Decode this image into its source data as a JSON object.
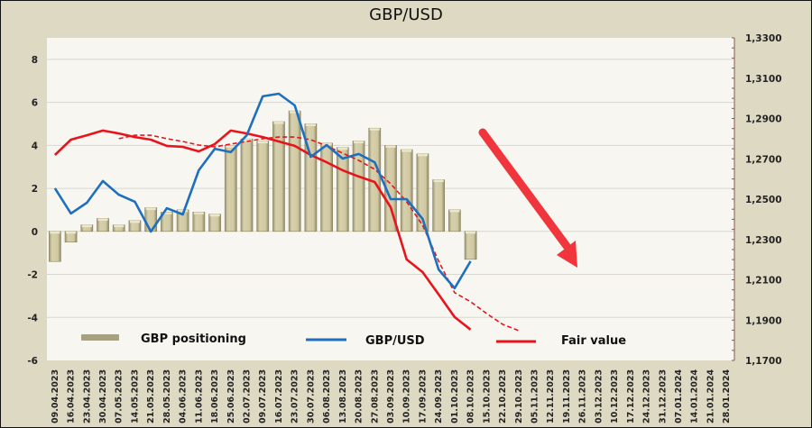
{
  "chart_data": {
    "type": "bar+line",
    "title": "GBP/USD",
    "categories": [
      "09.04.2023",
      "16.04.2023",
      "23.04.2023",
      "30.04.2023",
      "07.05.2023",
      "14.05.2023",
      "21.05.2023",
      "28.05.2023",
      "04.06.2023",
      "11.06.2023",
      "18.06.2023",
      "25.06.2023",
      "02.07.2023",
      "09.07.2023",
      "16.07.2023",
      "23.07.2023",
      "30.07.2023",
      "06.08.2023",
      "13.08.2023",
      "20.08.2023",
      "27.08.2023",
      "03.09.2023",
      "10.09.2023",
      "17.09.2023",
      "24.09.2023",
      "01.10.2023",
      "08.10.2023",
      "15.10.2023",
      "22.10.2023",
      "29.10.2023",
      "05.11.2023",
      "12.11.2023",
      "19.11.2023",
      "26.11.2023",
      "03.12.2023",
      "10.12.2023",
      "17.12.2023",
      "24.12.2023",
      "31.12.2023",
      "07.01.2024",
      "14.01.2024",
      "21.01.2024",
      "28.01.2024"
    ],
    "left_axis": {
      "ylim": [
        -6,
        9
      ],
      "ticks": [
        "8",
        "6",
        "4",
        "2",
        "0",
        "-2",
        "-4",
        "-6"
      ],
      "tick_values": [
        8,
        6,
        4,
        2,
        0,
        -2,
        -4,
        -6
      ]
    },
    "right_axis": {
      "ylim": [
        1.17,
        1.33
      ],
      "ticks": [
        "1,3300",
        "1,3100",
        "1,2900",
        "1,2700",
        "1,2500",
        "1,2300",
        "1,2100",
        "1,1900",
        "1,1700"
      ],
      "tick_values": [
        1.33,
        1.31,
        1.29,
        1.27,
        1.25,
        1.23,
        1.21,
        1.19,
        1.17
      ]
    },
    "series": [
      {
        "name": "GBP positioning",
        "type": "bar",
        "axis": "left",
        "color": "#c9c29a",
        "values": [
          -1.4,
          -0.5,
          0.3,
          0.6,
          0.3,
          0.5,
          1.1,
          0.9,
          1.0,
          0.9,
          0.8,
          4.0,
          4.3,
          4.2,
          5.1,
          5.6,
          5.0,
          4.1,
          3.9,
          4.2,
          4.8,
          4.0,
          3.8,
          3.6,
          2.4,
          1.0,
          -1.3
        ]
      },
      {
        "name": "GBP/USD",
        "type": "line",
        "axis": "right",
        "color": "#1f6fbf",
        "values": [
          1.2554,
          1.2429,
          1.2482,
          1.259,
          1.2522,
          1.2487,
          1.2339,
          1.2455,
          1.2424,
          1.2643,
          1.275,
          1.2733,
          1.2817,
          1.301,
          1.3023,
          1.2965,
          1.271,
          1.2768,
          1.2701,
          1.2724,
          1.2683,
          1.25,
          1.25,
          1.2402,
          1.2151,
          1.2058,
          1.2192
        ]
      },
      {
        "name": "Fair value",
        "type": "line",
        "axis": "right",
        "color": "#e8141c",
        "values": [
          1.2719,
          1.2795,
          1.2817,
          1.284,
          1.2826,
          1.2808,
          1.2795,
          1.2764,
          1.2759,
          1.2737,
          1.2773,
          1.284,
          1.2826,
          1.2808,
          1.2786,
          1.2764,
          1.2719,
          1.2683,
          1.2643,
          1.2612,
          1.2585,
          1.246,
          1.2201,
          1.2138,
          1.2027,
          1.1915,
          1.1853
        ]
      },
      {
        "name": "Fair value trend",
        "type": "line",
        "style": "dashed",
        "axis": "right",
        "color": "#e8141c",
        "start_index": 4,
        "values": [
          1.28,
          1.2817,
          1.2817,
          1.28,
          1.2786,
          1.2768,
          1.2759,
          1.2773,
          1.2786,
          1.28,
          1.2808,
          1.2808,
          1.2795,
          1.2764,
          1.2728,
          1.2692,
          1.2648,
          1.2576,
          1.2487,
          1.2371,
          1.2192,
          1.2036,
          1.1991,
          1.1933,
          1.1879,
          1.1848
        ]
      }
    ],
    "legend": {
      "placement": "bottom-inside",
      "entries": [
        "GBP positioning",
        "GBP/USD",
        "Fair value"
      ]
    },
    "annotations": [
      {
        "type": "arrow",
        "direction": "down-right",
        "color": "#f0363c",
        "meaning": "downtrend forecast"
      }
    ],
    "grid": true
  }
}
